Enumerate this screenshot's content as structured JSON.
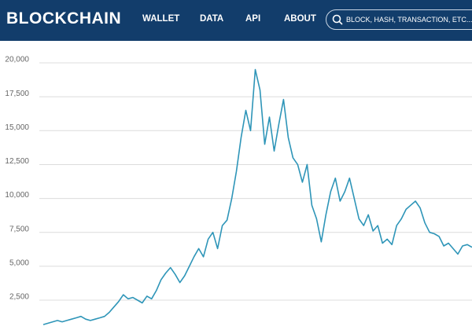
{
  "header": {
    "logo": "BLOCKCHAIN",
    "nav": [
      "WALLET",
      "DATA",
      "API",
      "ABOUT"
    ],
    "search_placeholder": "BLOCK, HASH, TRANSACTION, ETC..."
  },
  "chart_data": {
    "type": "line",
    "color": "#2e95b8",
    "grid": true,
    "ylim": [
      300,
      20000
    ],
    "yticks": [
      {
        "value": 2500,
        "label": "2,500"
      },
      {
        "value": 5000,
        "label": "5,000"
      },
      {
        "value": 7500,
        "label": "7,500"
      },
      {
        "value": 10000,
        "label": "10,000"
      },
      {
        "value": 12500,
        "label": "12,500"
      },
      {
        "value": 15000,
        "label": "15,000"
      },
      {
        "value": 17500,
        "label": "17,500"
      },
      {
        "value": 20000,
        "label": "20,000"
      }
    ],
    "values": [
      700,
      800,
      900,
      1000,
      900,
      1000,
      1100,
      1200,
      1300,
      1100,
      1000,
      1100,
      1200,
      1300,
      1600,
      2000,
      2400,
      2900,
      2600,
      2700,
      2500,
      2300,
      2800,
      2600,
      3200,
      4000,
      4500,
      4900,
      4400,
      3800,
      4300,
      5000,
      5700,
      6300,
      5700,
      7000,
      7500,
      6300,
      8000,
      8400,
      10000,
      12000,
      14500,
      16500,
      15000,
      19500,
      18000,
      14000,
      16000,
      13500,
      15500,
      17300,
      14500,
      13000,
      12500,
      11200,
      12500,
      9500,
      8500,
      6800,
      8800,
      10500,
      11500,
      9800,
      10500,
      11500,
      10000,
      8500,
      8000,
      8800,
      7600,
      8000,
      6700,
      7000,
      6600,
      8000,
      8500,
      9200,
      9500,
      9800,
      9300,
      8200,
      7500,
      7400,
      7200,
      6500,
      6700,
      6300,
      5900,
      6500,
      6600,
      6400
    ]
  }
}
